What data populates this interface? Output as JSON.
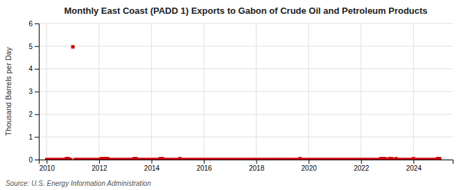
{
  "chart_data": {
    "type": "scatter",
    "title": "Monthly East Coast (PADD 1) Exports to Gabon of Crude Oil and Petroleum Products",
    "ylabel": "Thousand Barrels per Day",
    "annotations": [
      "Source: U.S. Energy Information Administration"
    ],
    "color": "#cc0000",
    "marker": "square",
    "grid": true,
    "xlim": [
      2009.7,
      2025.5
    ],
    "ylim": [
      0,
      6
    ],
    "xticks": [
      2010,
      2012,
      2014,
      2016,
      2018,
      2020,
      2022,
      2024
    ],
    "yticks": [
      0,
      1,
      2,
      3,
      4,
      5,
      6
    ],
    "x": [
      2010.0,
      2010.083,
      2010.167,
      2010.25,
      2010.333,
      2010.417,
      2010.5,
      2010.583,
      2010.667,
      2010.75,
      2010.833,
      2010.917,
      2011.0,
      2011.083,
      2011.167,
      2011.25,
      2011.333,
      2011.417,
      2011.5,
      2011.583,
      2011.667,
      2011.75,
      2011.833,
      2011.917,
      2012.0,
      2012.083,
      2012.167,
      2012.25,
      2012.333,
      2012.417,
      2012.5,
      2012.583,
      2012.667,
      2012.75,
      2012.833,
      2012.917,
      2013.0,
      2013.083,
      2013.167,
      2013.25,
      2013.333,
      2013.417,
      2013.5,
      2013.583,
      2013.667,
      2013.75,
      2013.833,
      2013.917,
      2014.0,
      2014.083,
      2014.167,
      2014.25,
      2014.333,
      2014.417,
      2014.5,
      2014.583,
      2014.667,
      2014.75,
      2014.833,
      2014.917,
      2015.0,
      2015.083,
      2015.167,
      2015.25,
      2015.333,
      2015.417,
      2015.5,
      2015.583,
      2015.667,
      2015.75,
      2015.833,
      2015.917,
      2016.0,
      2016.083,
      2016.167,
      2016.25,
      2016.333,
      2016.417,
      2016.5,
      2016.583,
      2016.667,
      2016.75,
      2016.833,
      2016.917,
      2017.0,
      2017.083,
      2017.167,
      2017.25,
      2017.333,
      2017.417,
      2017.5,
      2017.583,
      2017.667,
      2017.75,
      2017.833,
      2017.917,
      2018.0,
      2018.083,
      2018.167,
      2018.25,
      2018.333,
      2018.417,
      2018.5,
      2018.583,
      2018.667,
      2018.75,
      2018.833,
      2018.917,
      2019.0,
      2019.083,
      2019.167,
      2019.25,
      2019.333,
      2019.417,
      2019.5,
      2019.583,
      2019.667,
      2019.75,
      2019.833,
      2019.917,
      2020.0,
      2020.083,
      2020.167,
      2020.25,
      2020.333,
      2020.417,
      2020.5,
      2020.583,
      2020.667,
      2020.75,
      2020.833,
      2020.917,
      2021.0,
      2021.083,
      2021.167,
      2021.25,
      2021.333,
      2021.417,
      2021.5,
      2021.583,
      2021.667,
      2021.75,
      2021.833,
      2021.917,
      2022.0,
      2022.083,
      2022.167,
      2022.25,
      2022.333,
      2022.417,
      2022.5,
      2022.583,
      2022.667,
      2022.75,
      2022.833,
      2022.917,
      2023.0,
      2023.083,
      2023.167,
      2023.25,
      2023.333,
      2023.417,
      2023.5,
      2023.583,
      2023.667,
      2023.75,
      2023.833,
      2023.917,
      2024.0,
      2024.083,
      2024.167,
      2024.25,
      2024.333,
      2024.417,
      2024.5,
      2024.583,
      2024.667,
      2024.75,
      2024.833,
      2024.917,
      2025.0
    ],
    "values": [
      0.0,
      0.0,
      0.0,
      0.0,
      0.0,
      0.0,
      0.0,
      0.0,
      0.0,
      0.04,
      0.04,
      0.0,
      4.97,
      0.0,
      0.0,
      0.0,
      0.0,
      0.0,
      0.0,
      0.0,
      0.0,
      0.0,
      0.0,
      0.0,
      0.0,
      0.04,
      0.04,
      0.04,
      0.04,
      0.0,
      0.0,
      0.0,
      0.0,
      0.0,
      0.0,
      0.0,
      0.0,
      0.0,
      0.0,
      0.0,
      0.04,
      0.04,
      0.0,
      0.0,
      0.0,
      0.0,
      0.0,
      0.0,
      0.0,
      0.0,
      0.0,
      0.0,
      0.04,
      0.04,
      0.0,
      0.0,
      0.0,
      0.0,
      0.0,
      0.0,
      0.0,
      0.04,
      0.0,
      0.0,
      0.0,
      0.0,
      0.0,
      0.0,
      0.0,
      0.0,
      0.0,
      0.0,
      0.0,
      0.0,
      0.0,
      0.0,
      0.0,
      0.0,
      0.0,
      0.0,
      0.0,
      0.0,
      0.0,
      0.0,
      0.0,
      0.0,
      0.0,
      0.0,
      0.0,
      0.0,
      0.0,
      0.0,
      0.0,
      0.0,
      0.0,
      0.0,
      0.0,
      0.0,
      0.0,
      0.0,
      0.0,
      0.0,
      0.0,
      0.0,
      0.0,
      0.0,
      0.0,
      0.0,
      0.0,
      0.0,
      0.0,
      0.0,
      0.0,
      0.0,
      0.0,
      0.0,
      0.04,
      0.0,
      0.0,
      0.0,
      0.0,
      0.0,
      0.0,
      0.0,
      0.0,
      0.0,
      0.0,
      0.0,
      0.0,
      0.0,
      0.0,
      0.0,
      0.0,
      0.0,
      0.0,
      0.0,
      0.0,
      0.0,
      0.0,
      0.0,
      0.0,
      0.0,
      0.0,
      0.0,
      0.0,
      0.0,
      0.0,
      0.0,
      0.0,
      0.0,
      0.0,
      0.0,
      0.0,
      0.04,
      0.04,
      0.04,
      0.0,
      0.04,
      0.04,
      0.0,
      0.04,
      0.0,
      0.0,
      0.0,
      0.0,
      0.0,
      0.0,
      0.0,
      0.04,
      0.0,
      0.0,
      0.0,
      0.0,
      0.0,
      0.0,
      0.0,
      0.0,
      0.0,
      0.0,
      0.04,
      0.04
    ]
  }
}
